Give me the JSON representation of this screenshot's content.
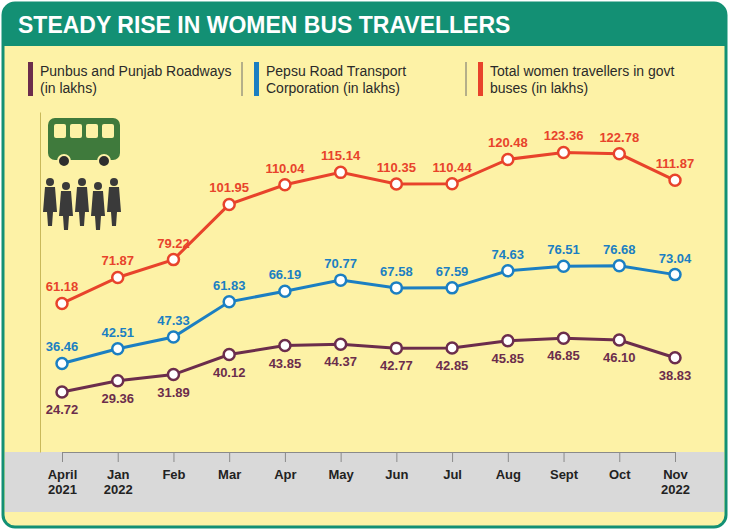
{
  "chart_data": {
    "type": "line",
    "title": "STEADY RISE IN WOMEN BUS TRAVELLERS",
    "categories": [
      "April 2021",
      "Jan 2022",
      "Feb",
      "Mar",
      "Apr",
      "May",
      "Jun",
      "Jul",
      "Aug",
      "Sept",
      "Oct",
      "Nov 2022"
    ],
    "series": [
      {
        "name": "Punbus and Punjab Roadways (in lakhs)",
        "color": "#6b2d4c",
        "marker": "circle",
        "values": [
          24.72,
          29.36,
          31.89,
          40.12,
          43.85,
          44.37,
          42.77,
          42.85,
          45.85,
          46.85,
          46.1,
          38.83
        ],
        "value_labels": [
          "24.72",
          "29.36",
          "31.89",
          "40.12",
          "43.85",
          "44.37",
          "42.77",
          "42.85",
          "45.85",
          "46.85",
          "46.10",
          "38.83"
        ]
      },
      {
        "name": "Pepsu Road Transport Corporation (in lakhs)",
        "color": "#1b7fc2",
        "marker": "circle",
        "values": [
          36.46,
          42.51,
          47.33,
          61.83,
          66.19,
          70.77,
          67.58,
          67.59,
          74.63,
          76.51,
          76.68,
          73.04
        ],
        "value_labels": [
          "36.46",
          "42.51",
          "47.33",
          "61.83",
          "66.19",
          "70.77",
          "67.58",
          "67.59",
          "74.63",
          "76.51",
          "76.68",
          "73.04"
        ]
      },
      {
        "name": "Total women travellers in govt buses (in lakhs)",
        "color": "#e8432b",
        "marker": "circle",
        "values": [
          61.18,
          71.87,
          79.22,
          101.95,
          110.04,
          115.14,
          110.35,
          110.44,
          120.48,
          123.36,
          122.78,
          111.87
        ],
        "value_labels": [
          "61.18",
          "71.87",
          "79.22",
          "101.95",
          "110.04",
          "115.14",
          "110.35",
          "110.44",
          "120.48",
          "123.36",
          "122.78",
          "111.87"
        ]
      }
    ],
    "ylim": [
      0,
      140
    ],
    "yticks": [],
    "tick_labels": "x",
    "data_labels": true,
    "legend": "top",
    "grid": false
  }
}
